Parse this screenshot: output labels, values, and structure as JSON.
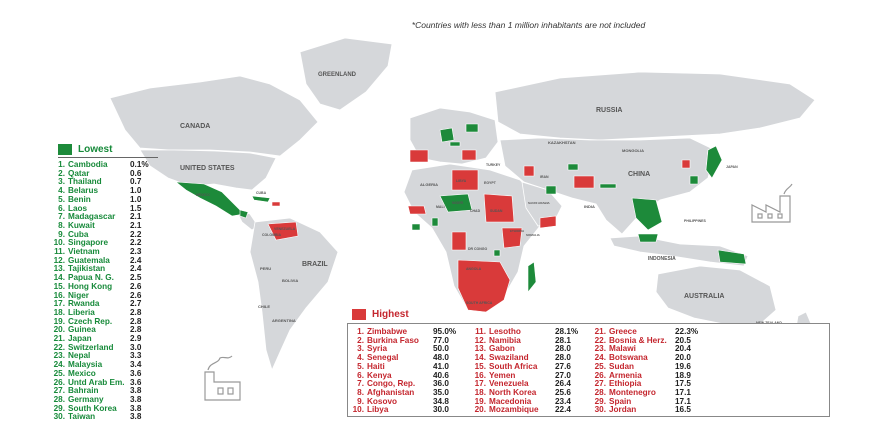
{
  "note": "*Countries with less than 1 million inhabitants are not included",
  "colors": {
    "land": "#d5d7da",
    "lowest": "#1d8a3a",
    "highest": "#d93a3a",
    "border": "#ffffff"
  },
  "map_labels": {
    "greenland": "GREENLAND",
    "canada": "CANADA",
    "united_states": "UNITED STATES",
    "brazil": "BRAZIL",
    "peru": "PERU",
    "bolivia": "BOLIVIA",
    "argentina": "ARGENTINA",
    "chile": "CHILE",
    "russia": "RUSSIA",
    "kazakhstan": "KAZAKHSTAN",
    "mongolia": "MONGOLIA",
    "china": "CHINA",
    "india": "INDIA",
    "japan": "JAPAN",
    "indonesia": "INDONESIA",
    "australia": "AUSTRALIA",
    "new_zealand": "NEW ZEALAND",
    "algeria": "ALGERIA",
    "libya": "LIBYA",
    "egypt": "EGYPT",
    "sudan": "SUDAN",
    "chad": "CHAD",
    "mali": "MALI",
    "niger": "NIGER",
    "iran": "IRAN",
    "turkey": "TURKEY",
    "saudi_arabia": "SAUDI ARABIA",
    "dr_congo": "DR CONGO",
    "angola": "ANGOLA",
    "south_africa": "SOUTH AFRICA",
    "ethiopia": "ETHIOPIA",
    "somalia": "SOMALIA",
    "philippines": "PHILIPPINES",
    "mexico": "MEXICO",
    "cuba": "CUBA",
    "colombia": "COLOMBIA",
    "venezuela": "VENEZUELA"
  },
  "lowest": {
    "title": "Lowest",
    "items": [
      {
        "rank": "1.",
        "name": "Cambodia",
        "value": "0.1%"
      },
      {
        "rank": "2.",
        "name": "Qatar",
        "value": "0.6"
      },
      {
        "rank": "3.",
        "name": "Thailand",
        "value": "0.7"
      },
      {
        "rank": "4.",
        "name": "Belarus",
        "value": "1.0"
      },
      {
        "rank": "5.",
        "name": "Benin",
        "value": "1.0"
      },
      {
        "rank": "6.",
        "name": "Laos",
        "value": "1.5"
      },
      {
        "rank": "7.",
        "name": "Madagascar",
        "value": "2.1"
      },
      {
        "rank": "8.",
        "name": "Kuwait",
        "value": "2.1"
      },
      {
        "rank": "9.",
        "name": "Cuba",
        "value": "2.2"
      },
      {
        "rank": "10.",
        "name": "Singapore",
        "value": "2.2"
      },
      {
        "rank": "11.",
        "name": "Vietnam",
        "value": "2.3"
      },
      {
        "rank": "12.",
        "name": "Guatemala",
        "value": "2.4"
      },
      {
        "rank": "13.",
        "name": "Tajikistan",
        "value": "2.4"
      },
      {
        "rank": "14.",
        "name": "Papua N. G.",
        "value": "2.5"
      },
      {
        "rank": "15.",
        "name": "Hong Kong",
        "value": "2.6"
      },
      {
        "rank": "16.",
        "name": "Niger",
        "value": "2.6"
      },
      {
        "rank": "17.",
        "name": "Rwanda",
        "value": "2.7"
      },
      {
        "rank": "18.",
        "name": "Liberia",
        "value": "2.8"
      },
      {
        "rank": "19.",
        "name": "Czech Rep.",
        "value": "2.8"
      },
      {
        "rank": "20.",
        "name": "Guinea",
        "value": "2.8"
      },
      {
        "rank": "21.",
        "name": "Japan",
        "value": "2.9"
      },
      {
        "rank": "22.",
        "name": "Switzerland",
        "value": "3.0"
      },
      {
        "rank": "23.",
        "name": "Nepal",
        "value": "3.3"
      },
      {
        "rank": "24.",
        "name": "Malaysia",
        "value": "3.4"
      },
      {
        "rank": "25.",
        "name": "Mexico",
        "value": "3.6"
      },
      {
        "rank": "26.",
        "name": "Untd Arab Em.",
        "value": "3.6"
      },
      {
        "rank": "27.",
        "name": "Bahrain",
        "value": "3.8"
      },
      {
        "rank": "28.",
        "name": "Germany",
        "value": "3.8"
      },
      {
        "rank": "29.",
        "name": "South Korea",
        "value": "3.8"
      },
      {
        "rank": "30.",
        "name": "Taiwan",
        "value": "3.8"
      }
    ]
  },
  "highest": {
    "title": "Highest",
    "columns": [
      [
        {
          "rank": "1.",
          "name": "Zimbabwe",
          "value": "95.0%"
        },
        {
          "rank": "2.",
          "name": "Burkina Faso",
          "value": "77.0"
        },
        {
          "rank": "3.",
          "name": "Syria",
          "value": "50.0"
        },
        {
          "rank": "4.",
          "name": "Senegal",
          "value": "48.0"
        },
        {
          "rank": "5.",
          "name": "Haiti",
          "value": "41.0"
        },
        {
          "rank": "6.",
          "name": "Kenya",
          "value": "40.6"
        },
        {
          "rank": "7.",
          "name": "Congo, Rep.",
          "value": "36.0"
        },
        {
          "rank": "8.",
          "name": "Afghanistan",
          "value": "35.0"
        },
        {
          "rank": "9.",
          "name": "Kosovo",
          "value": "34.8"
        },
        {
          "rank": "10.",
          "name": "Libya",
          "value": "30.0"
        }
      ],
      [
        {
          "rank": "11.",
          "name": "Lesotho",
          "value": "28.1%"
        },
        {
          "rank": "12.",
          "name": "Namibia",
          "value": "28.1"
        },
        {
          "rank": "13.",
          "name": "Gabon",
          "value": "28.0"
        },
        {
          "rank": "14.",
          "name": "Swaziland",
          "value": "28.0"
        },
        {
          "rank": "15.",
          "name": "South Africa",
          "value": "27.6"
        },
        {
          "rank": "16.",
          "name": "Yemen",
          "value": "27.0"
        },
        {
          "rank": "17.",
          "name": "Venezuela",
          "value": "26.4"
        },
        {
          "rank": "18.",
          "name": "North Korea",
          "value": "25.6"
        },
        {
          "rank": "19.",
          "name": "Macedonia",
          "value": "23.4"
        },
        {
          "rank": "20.",
          "name": "Mozambique",
          "value": "22.4"
        }
      ],
      [
        {
          "rank": "21.",
          "name": "Greece",
          "value": "22.3%"
        },
        {
          "rank": "22.",
          "name": "Bosnia & Herz.",
          "value": "20.5"
        },
        {
          "rank": "23.",
          "name": "Malawi",
          "value": "20.4"
        },
        {
          "rank": "24.",
          "name": "Botswana",
          "value": "20.0"
        },
        {
          "rank": "25.",
          "name": "Sudan",
          "value": "19.6"
        },
        {
          "rank": "26.",
          "name": "Armenia",
          "value": "18.9"
        },
        {
          "rank": "27.",
          "name": "Ethiopia",
          "value": "17.5"
        },
        {
          "rank": "28.",
          "name": "Montenegro",
          "value": "17.1"
        },
        {
          "rank": "29.",
          "name": "Spain",
          "value": "17.1"
        },
        {
          "rank": "30.",
          "name": "Jordan",
          "value": "16.5"
        }
      ]
    ]
  }
}
